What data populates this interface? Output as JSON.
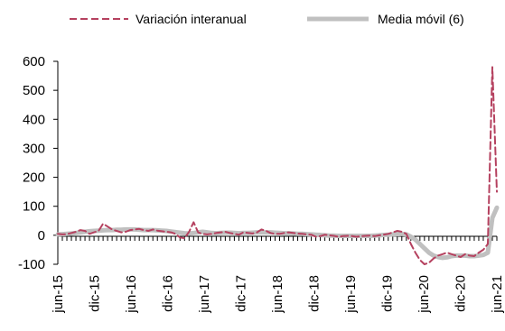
{
  "chart_data": {
    "type": "line",
    "legend_position": "top",
    "grid": false,
    "ylim": [
      -100,
      600
    ],
    "yticks": [
      "600",
      "500",
      "400",
      "300",
      "200",
      "100",
      "0",
      "-100"
    ],
    "xticks": [
      "jun-15",
      "dic-15",
      "jun-16",
      "dic-16",
      "jun-17",
      "dic-17",
      "jun-18",
      "dic-18",
      "jun-19",
      "dic-19",
      "jun-20",
      "dic-20",
      "jun-21"
    ],
    "series": [
      {
        "name": "Variación interanual",
        "color": "#b5415f",
        "style": "dashed",
        "values": [
          5,
          3,
          4,
          8,
          12,
          18,
          15,
          5,
          10,
          15,
          40,
          30,
          20,
          15,
          10,
          12,
          18,
          20,
          22,
          18,
          15,
          20,
          16,
          14,
          12,
          10,
          5,
          -8,
          -10,
          12,
          45,
          10,
          5,
          3,
          5,
          8,
          10,
          12,
          8,
          5,
          2,
          10,
          8,
          6,
          10,
          20,
          15,
          8,
          5,
          5,
          8,
          10,
          8,
          6,
          5,
          3,
          2,
          -5,
          -3,
          2,
          0,
          -2,
          -5,
          -3,
          -2,
          -3,
          -5,
          -3,
          -2,
          -1,
          -3,
          0,
          2,
          5,
          10,
          15,
          12,
          5,
          -30,
          -60,
          -85,
          -100,
          -95,
          -80,
          -70,
          -65,
          -60,
          -65,
          -70,
          -75,
          -65,
          -70,
          -72,
          -60,
          -50,
          -30,
          580,
          150
        ]
      },
      {
        "name": "Media móvil (6)",
        "color": "#c0c0c0",
        "style": "solid",
        "values": [
          3,
          4,
          5,
          6,
          8,
          10,
          12,
          14,
          15,
          16,
          17,
          18,
          18,
          19,
          19,
          20,
          20,
          20,
          19,
          18,
          18,
          18,
          17,
          16,
          15,
          13,
          11,
          9,
          7,
          6,
          8,
          10,
          12,
          10,
          8,
          7,
          8,
          9,
          9,
          8,
          7,
          8,
          8,
          9,
          10,
          10,
          10,
          10,
          9,
          8,
          7,
          7,
          6,
          5,
          5,
          4,
          3,
          2,
          1,
          0,
          -1,
          -1,
          -2,
          -2,
          -2,
          -2,
          -2,
          -2,
          -2,
          -2,
          -1,
          0,
          1,
          2,
          3,
          4,
          5,
          3,
          -5,
          -15,
          -30,
          -45,
          -60,
          -70,
          -75,
          -78,
          -76,
          -72,
          -70,
          -70,
          -70,
          -72,
          -72,
          -70,
          -68,
          -60,
          60,
          95
        ]
      }
    ]
  }
}
